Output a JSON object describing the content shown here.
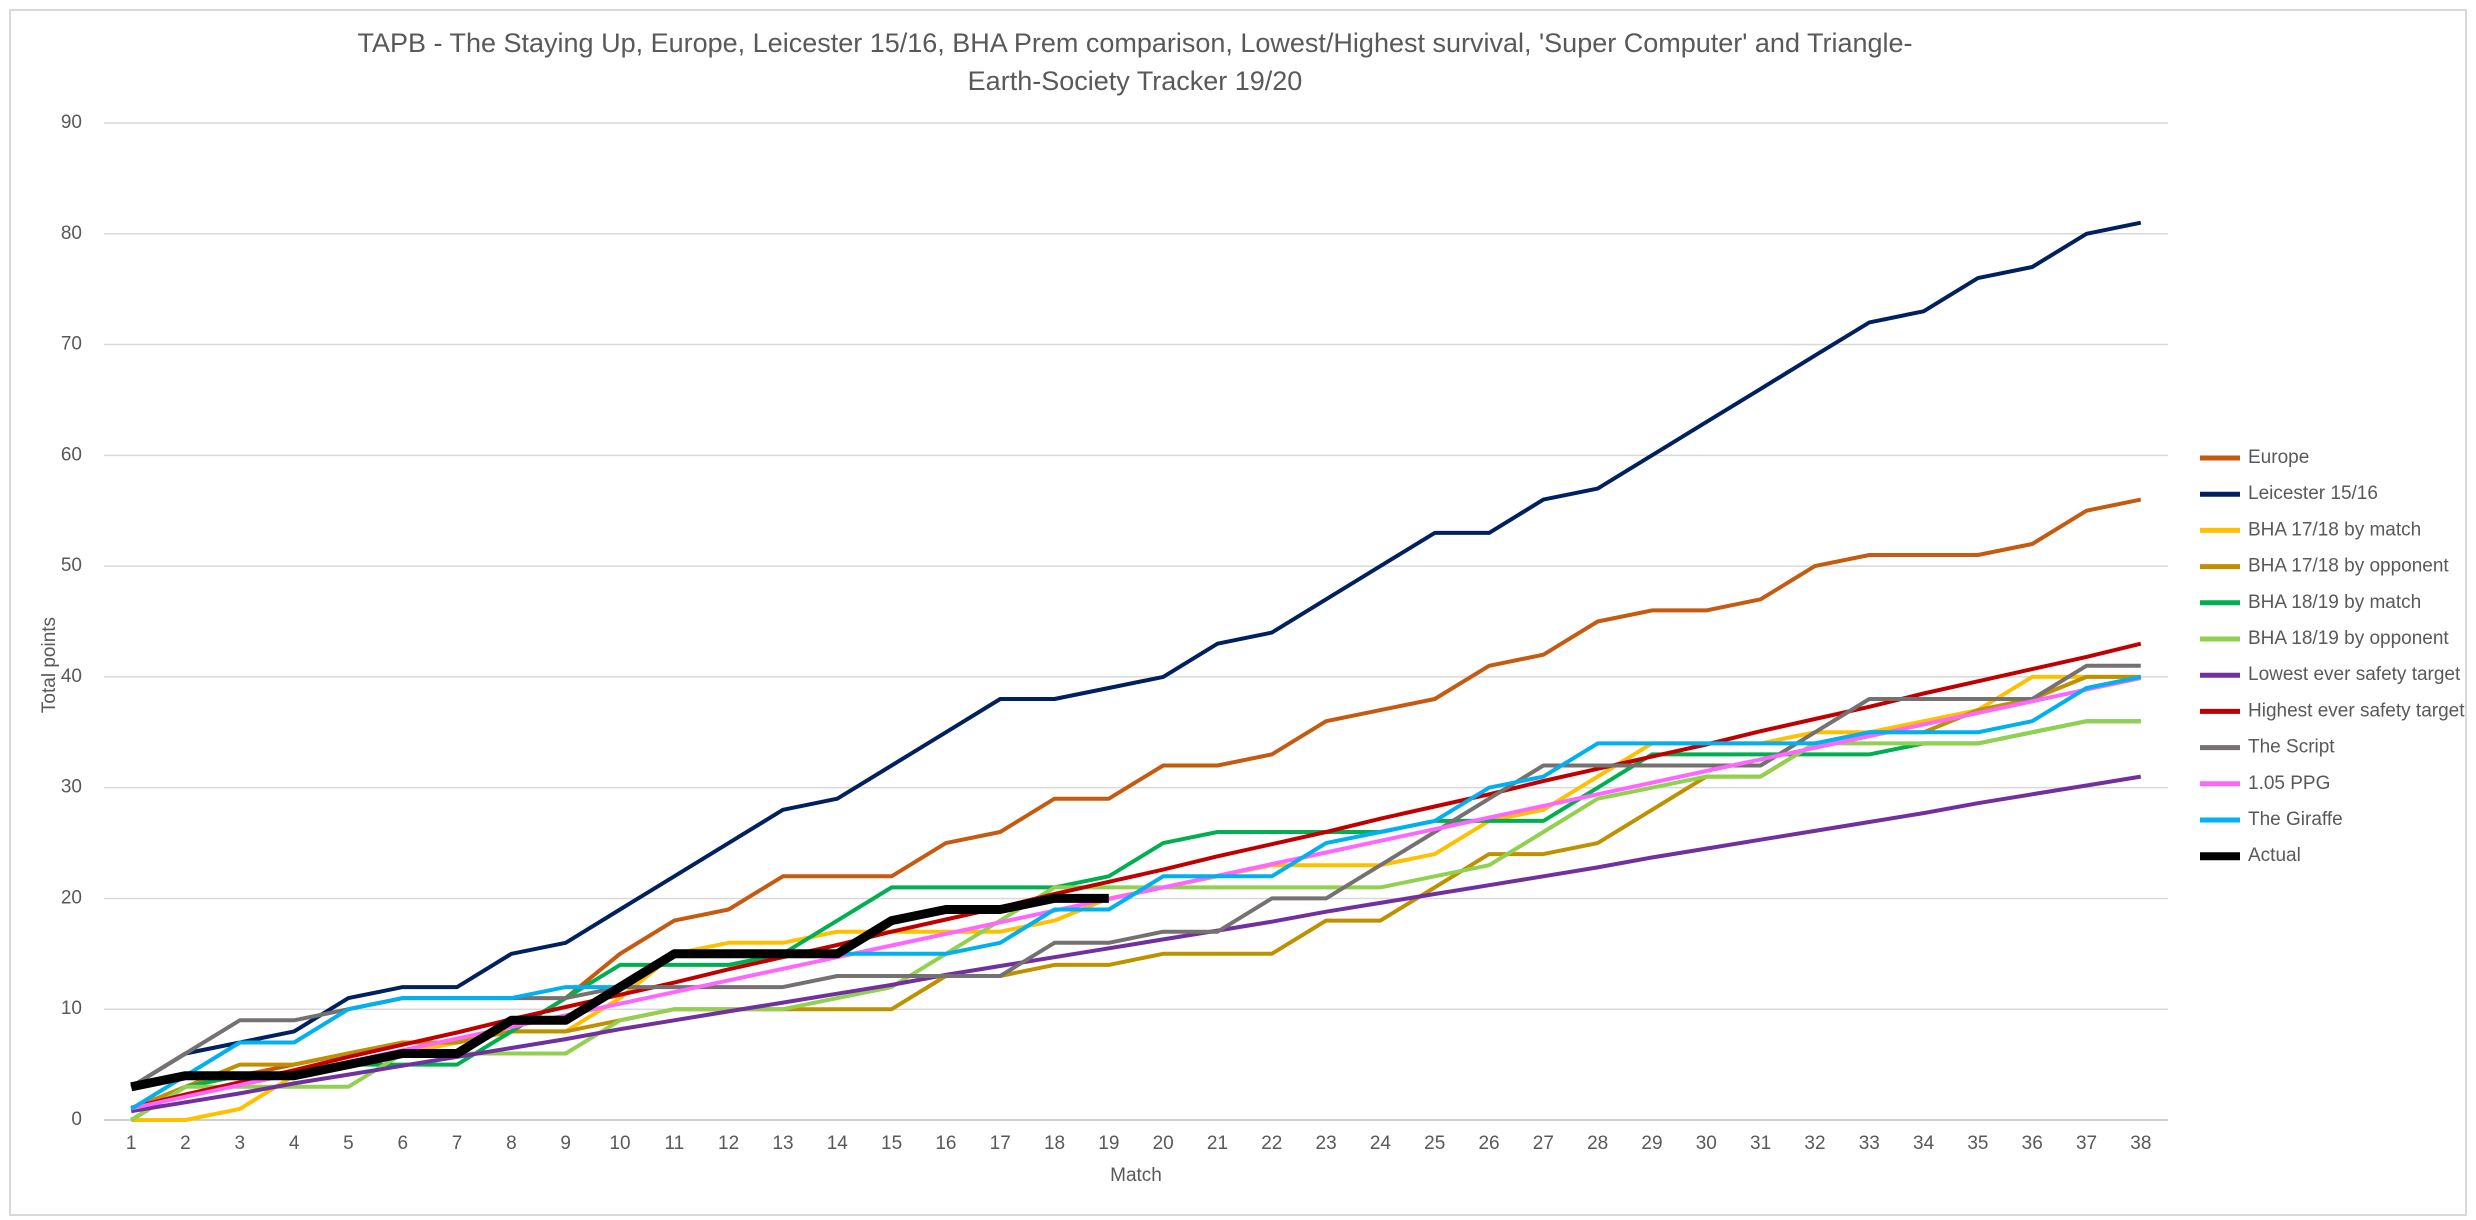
{
  "chart_data": {
    "type": "line",
    "title": "TAPB - The Staying Up, Europe, Leicester 15/16, BHA Prem comparison, Lowest/Highest survival, 'Super Computer' and Triangle-Earth-Society Tracker 19/20",
    "x_label": "Match",
    "y_label": "Total points",
    "categories": [
      1,
      2,
      3,
      4,
      5,
      6,
      7,
      8,
      9,
      10,
      11,
      12,
      13,
      14,
      15,
      16,
      17,
      18,
      19,
      20,
      21,
      22,
      23,
      24,
      25,
      26,
      27,
      28,
      29,
      30,
      31,
      32,
      33,
      34,
      35,
      36,
      37,
      38
    ],
    "ylim": [
      0,
      90
    ],
    "yticks": [
      0,
      10,
      20,
      30,
      40,
      50,
      60,
      70,
      80,
      90
    ],
    "grid": true,
    "legend": "right",
    "series": [
      {
        "name": "Europe",
        "color": "#c55a11",
        "values": [
          1,
          3,
          4,
          5,
          6,
          7,
          7,
          8,
          11,
          15,
          18,
          19,
          22,
          22,
          22,
          25,
          26,
          29,
          29,
          32,
          32,
          33,
          36,
          37,
          38,
          41,
          42,
          45,
          46,
          46,
          47,
          50,
          51,
          51,
          51,
          52,
          55,
          56
        ]
      },
      {
        "name": "Leicester 15/16",
        "color": "#002060",
        "values": [
          3,
          6,
          7,
          8,
          11,
          12,
          12,
          15,
          16,
          19,
          22,
          25,
          28,
          29,
          32,
          35,
          38,
          38,
          39,
          40,
          43,
          44,
          47,
          50,
          53,
          53,
          56,
          57,
          60,
          63,
          66,
          69,
          72,
          73,
          76,
          77,
          80,
          81
        ]
      },
      {
        "name": "BHA 17/18 by match",
        "color": "#ffc000",
        "values": [
          0,
          0,
          1,
          4,
          5,
          6,
          7,
          8,
          8,
          11,
          15,
          16,
          16,
          17,
          17,
          17,
          17,
          18,
          20,
          21,
          22,
          23,
          23,
          23,
          24,
          27,
          28,
          31,
          34,
          34,
          34,
          35,
          35,
          36,
          37,
          40,
          40,
          40
        ]
      },
      {
        "name": "BHA 17/18 by opponent",
        "color": "#bf9000",
        "values": [
          1,
          3,
          5,
          5,
          6,
          7,
          7,
          8,
          8,
          9,
          10,
          10,
          10,
          10,
          10,
          13,
          13,
          14,
          14,
          15,
          15,
          15,
          18,
          18,
          21,
          24,
          24,
          25,
          28,
          31,
          31,
          34,
          35,
          35,
          37,
          38,
          40,
          40
        ]
      },
      {
        "name": "BHA 18/19 by match",
        "color": "#00b050",
        "values": [
          0,
          3,
          4,
          4,
          5,
          5,
          5,
          8,
          11,
          14,
          14,
          14,
          15,
          18,
          21,
          21,
          21,
          21,
          22,
          25,
          26,
          26,
          26,
          26,
          27,
          27,
          27,
          30,
          33,
          33,
          33,
          33,
          33,
          34,
          34,
          35,
          36,
          36
        ]
      },
      {
        "name": "BHA 18/19 by opponent",
        "color": "#92d050",
        "values": [
          0,
          3,
          3,
          3,
          3,
          6,
          6,
          6,
          6,
          9,
          10,
          10,
          10,
          11,
          12,
          15,
          18,
          21,
          21,
          21,
          21,
          21,
          21,
          21,
          22,
          23,
          26,
          29,
          30,
          31,
          31,
          34,
          34,
          34,
          34,
          35,
          36,
          36
        ]
      },
      {
        "name": "Lowest ever safety target",
        "color": "#7030a0",
        "values": [
          0.8,
          1.6,
          2.4,
          3.3,
          4.1,
          4.9,
          5.7,
          6.5,
          7.3,
          8.2,
          9.0,
          9.8,
          10.6,
          11.4,
          12.2,
          13.1,
          13.9,
          14.7,
          15.5,
          16.3,
          17.1,
          17.9,
          18.8,
          19.6,
          20.4,
          21.2,
          22.0,
          22.8,
          23.7,
          24.5,
          25.3,
          26.1,
          26.9,
          27.7,
          28.6,
          29.4,
          30.2,
          31.0
        ]
      },
      {
        "name": "Highest ever safety target",
        "color": "#c00000",
        "values": [
          1.1,
          2.3,
          3.4,
          4.5,
          5.7,
          6.8,
          7.9,
          9.1,
          10.2,
          11.3,
          12.4,
          13.6,
          14.7,
          15.8,
          17.0,
          18.1,
          19.2,
          20.4,
          21.5,
          22.6,
          23.8,
          24.9,
          26.0,
          27.2,
          28.3,
          29.4,
          30.6,
          31.7,
          32.8,
          33.9,
          35.1,
          36.2,
          37.3,
          38.5,
          39.6,
          40.7,
          41.8,
          43.0
        ]
      },
      {
        "name": "The Script",
        "color": "#767171",
        "values": [
          3,
          6,
          9,
          9,
          10,
          11,
          11,
          11,
          11,
          12,
          12,
          12,
          12,
          13,
          13,
          13,
          13,
          16,
          16,
          17,
          17,
          20,
          20,
          23,
          26,
          29,
          32,
          32,
          32,
          32,
          32,
          35,
          38,
          38,
          38,
          38,
          41,
          41
        ]
      },
      {
        "name": "1.05 PPG",
        "color": "#ff66ff",
        "values": [
          1.05,
          2.1,
          3.15,
          4.2,
          5.25,
          6.3,
          7.35,
          8.4,
          9.45,
          10.5,
          11.55,
          12.6,
          13.65,
          14.7,
          15.75,
          16.8,
          17.85,
          18.9,
          19.95,
          21,
          22.05,
          23.1,
          24.15,
          25.2,
          26.25,
          27.3,
          28.35,
          29.4,
          30.45,
          31.5,
          32.55,
          33.6,
          34.65,
          35.7,
          36.75,
          37.8,
          38.85,
          39.9
        ]
      },
      {
        "name": "The Giraffe",
        "color": "#00b0f0",
        "values": [
          1,
          4,
          7,
          7,
          10,
          11,
          11,
          11,
          12,
          12,
          15,
          15,
          15,
          15,
          15,
          15,
          16,
          19,
          19,
          22,
          22,
          22,
          25,
          26,
          27,
          30,
          31,
          34,
          34,
          34,
          34,
          34,
          35,
          35,
          35,
          36,
          39,
          40
        ]
      },
      {
        "name": "Actual",
        "color": "#000000",
        "values": [
          3,
          4,
          4,
          4,
          5,
          6,
          6,
          9,
          9,
          12,
          15,
          15,
          15,
          15,
          18,
          19,
          19,
          20,
          20,
          null,
          null,
          null,
          null,
          null,
          null,
          null,
          null,
          null,
          null,
          null,
          null,
          null,
          null,
          null,
          null,
          null,
          null,
          null
        ]
      }
    ]
  }
}
